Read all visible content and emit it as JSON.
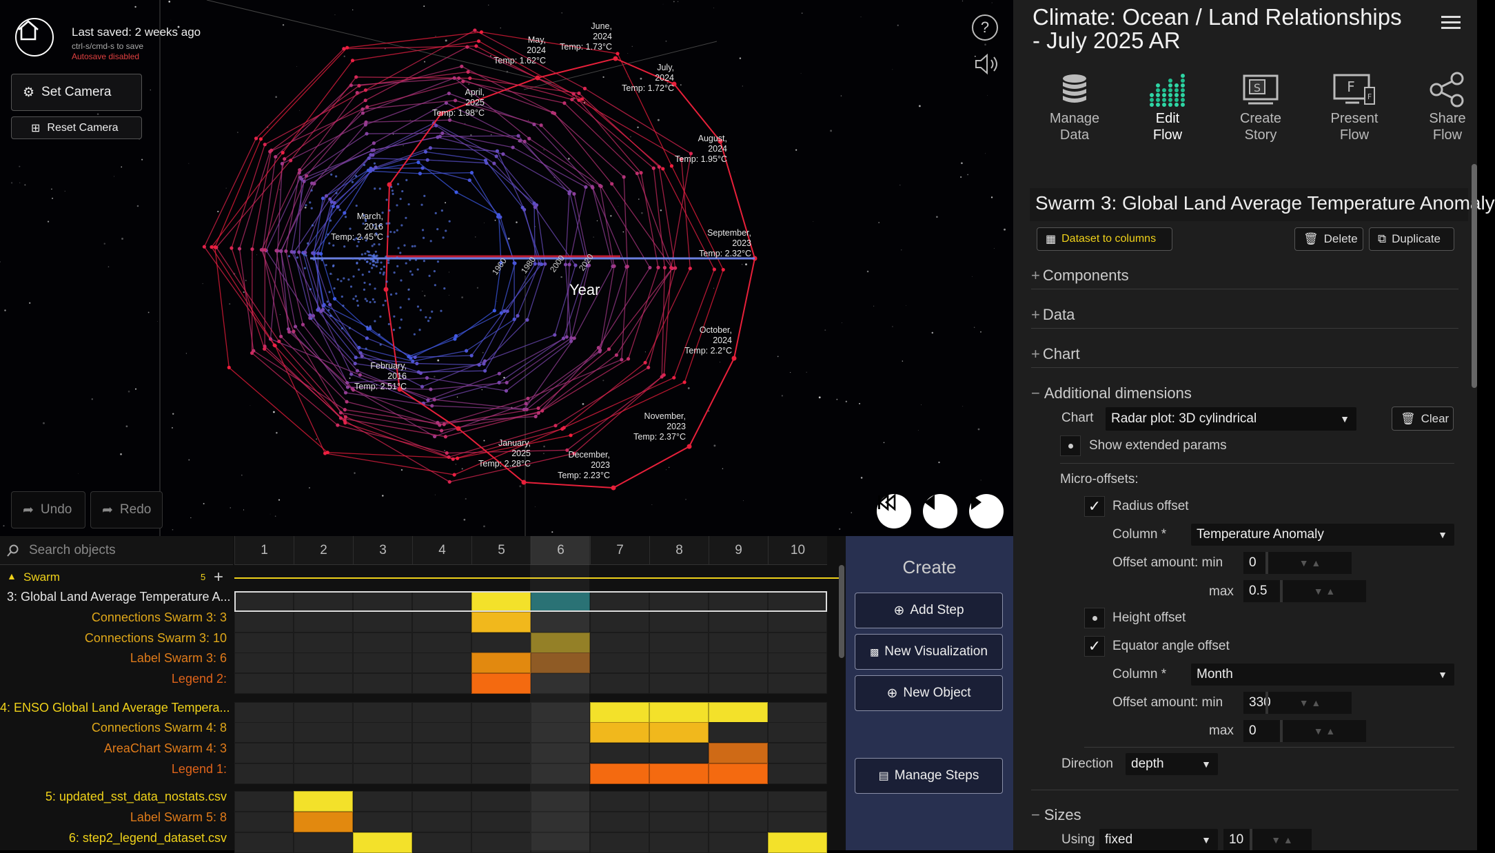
{
  "header": {
    "save_status": "Last saved: 2 weeks ago",
    "save_hint": "ctrl-s/cmd-s to save",
    "autosave": "Autosave disabled"
  },
  "camera": {
    "set_label": "Set Camera",
    "reset_label": "Reset Camera"
  },
  "history": {
    "undo_label": "Undo",
    "redo_label": "Redo"
  },
  "viz": {
    "center_label": "Year",
    "year_ticks": [
      "1960",
      "1980",
      "2000",
      "2020"
    ],
    "annotations": [
      {
        "lines": [
          "June,",
          "2024",
          "Temp: 1.73°C"
        ]
      },
      {
        "lines": [
          "May,",
          "2024",
          "Temp: 1.62°C"
        ]
      },
      {
        "lines": [
          "July,",
          "2024",
          "Temp: 1.72°C"
        ]
      },
      {
        "lines": [
          "April,",
          "2025",
          "Temp: 1.98°C"
        ]
      },
      {
        "lines": [
          "August,",
          "2024",
          "Temp: 1.95°C"
        ]
      },
      {
        "lines": [
          "March,",
          "2016",
          "Temp: 2.45°C"
        ]
      },
      {
        "lines": [
          "September,",
          "2023",
          "Temp: 2.32°C"
        ]
      },
      {
        "lines": [
          "October,",
          "2024",
          "Temp: 2.2°C"
        ]
      },
      {
        "lines": [
          "February,",
          "2016",
          "Temp: 2.51°C"
        ]
      },
      {
        "lines": [
          "November,",
          "2023",
          "Temp: 2.37°C"
        ]
      },
      {
        "lines": [
          "January,",
          "2025",
          "Temp: 2.28°C"
        ]
      },
      {
        "lines": [
          "December,",
          "2023",
          "Temp: 2.23°C"
        ]
      }
    ]
  },
  "timeline": {
    "search_placeholder": "Search objects",
    "columns": [
      "1",
      "2",
      "3",
      "4",
      "5",
      "6",
      "7",
      "8",
      "9",
      "10"
    ],
    "group": {
      "label": "Swarm",
      "count": "5"
    },
    "rows": [
      {
        "label": "3: Global Land Average Temperature A...",
        "color": "#e6e6e6",
        "cells": {
          "5": "#f3e12a",
          "6": "#1f6b6e"
        }
      },
      {
        "label": "Connections Swarm 3: 3",
        "color": "#e0a81a",
        "cells": {
          "5": "#f1b81c"
        }
      },
      {
        "label": "Connections Swarm 3: 10",
        "color": "#e0a81a",
        "cells": {
          "6": "#8f7a1c"
        }
      },
      {
        "label": "Label Swarm 3: 6",
        "color": "#e07b1a",
        "cells": {
          "5": "#e2890f",
          "6": "#8a531a"
        }
      },
      {
        "label": "Legend 2:",
        "color": "#e0641a",
        "cells": {
          "5": "#f46a10"
        }
      },
      {
        "label": "4: ENSO Global Land Average Tempera...",
        "color": "#f0d21a",
        "cells": {
          "7": "#f3e12a",
          "8": "#f3e12a",
          "9": "#f3e12a"
        }
      },
      {
        "label": "Connections Swarm 4: 8",
        "color": "#e0a81a",
        "cells": {
          "7": "#f1b81c",
          "8": "#f1b81c"
        }
      },
      {
        "label": "AreaChart Swarm 4: 3",
        "color": "#e07b1a",
        "cells": {
          "9": "#cf6a16"
        }
      },
      {
        "label": "Legend 1:",
        "color": "#e0641a",
        "cells": {
          "7": "#f46a10",
          "8": "#f46a10",
          "9": "#f46a10"
        }
      },
      {
        "label": "5: updated_sst_data_nostats.csv",
        "color": "#f0d21a",
        "cells": {
          "2": "#f3e12a"
        }
      },
      {
        "label": "Label Swarm 5: 8",
        "color": "#e07b1a",
        "cells": {
          "2": "#e2890f"
        }
      },
      {
        "label": "6: step2_legend_dataset.csv",
        "color": "#f0d21a",
        "cells": {
          "3": "#f3e12a",
          "10": "#f3e12a"
        }
      }
    ]
  },
  "create": {
    "title": "Create",
    "add_step": "Add Step",
    "new_visualization": "New Visualization",
    "new_object": "New Object",
    "manage_steps": "Manage Steps"
  },
  "panel": {
    "title_line1": "Climate: Ocean / Land Relationships",
    "title_line2": "- July 2025 AR",
    "nav": [
      {
        "label1": "Manage",
        "label2": "Data"
      },
      {
        "label1": "Edit",
        "label2": "Flow"
      },
      {
        "label1": "Create",
        "label2": "Story"
      },
      {
        "label1": "Present",
        "label2": "Flow"
      },
      {
        "label1": "Share",
        "label2": "Flow"
      }
    ],
    "object_title": "Swarm 3: Global Land Average Temperature Anomaly",
    "dataset_btn": "Dataset to columns",
    "delete_btn": "Delete",
    "duplicate_btn": "Duplicate",
    "sections": {
      "components": "Components",
      "data": "Data",
      "chart": "Chart",
      "additional": "Additional dimensions",
      "sizes": "Sizes"
    },
    "chart_label": "Chart",
    "chart_value": "Radar plot: 3D cylindrical",
    "clear_btn": "Clear",
    "show_extended": "Show extended params",
    "micro_offsets": "Micro-offsets:",
    "radius_offset": "Radius offset",
    "column_label": "Column *",
    "radius_column": "Temperature Anomaly",
    "offset_min_label": "Offset amount: min",
    "offset_max_label": "max",
    "radius_min": "0",
    "radius_max": "0.5",
    "height_offset": "Height offset",
    "equator_offset": "Equator angle offset",
    "equator_column": "Month",
    "equator_min": "330",
    "equator_max": "0",
    "direction_label": "Direction",
    "direction_value": "depth",
    "using_label": "Using",
    "using_value": "fixed",
    "size_value": "10"
  }
}
